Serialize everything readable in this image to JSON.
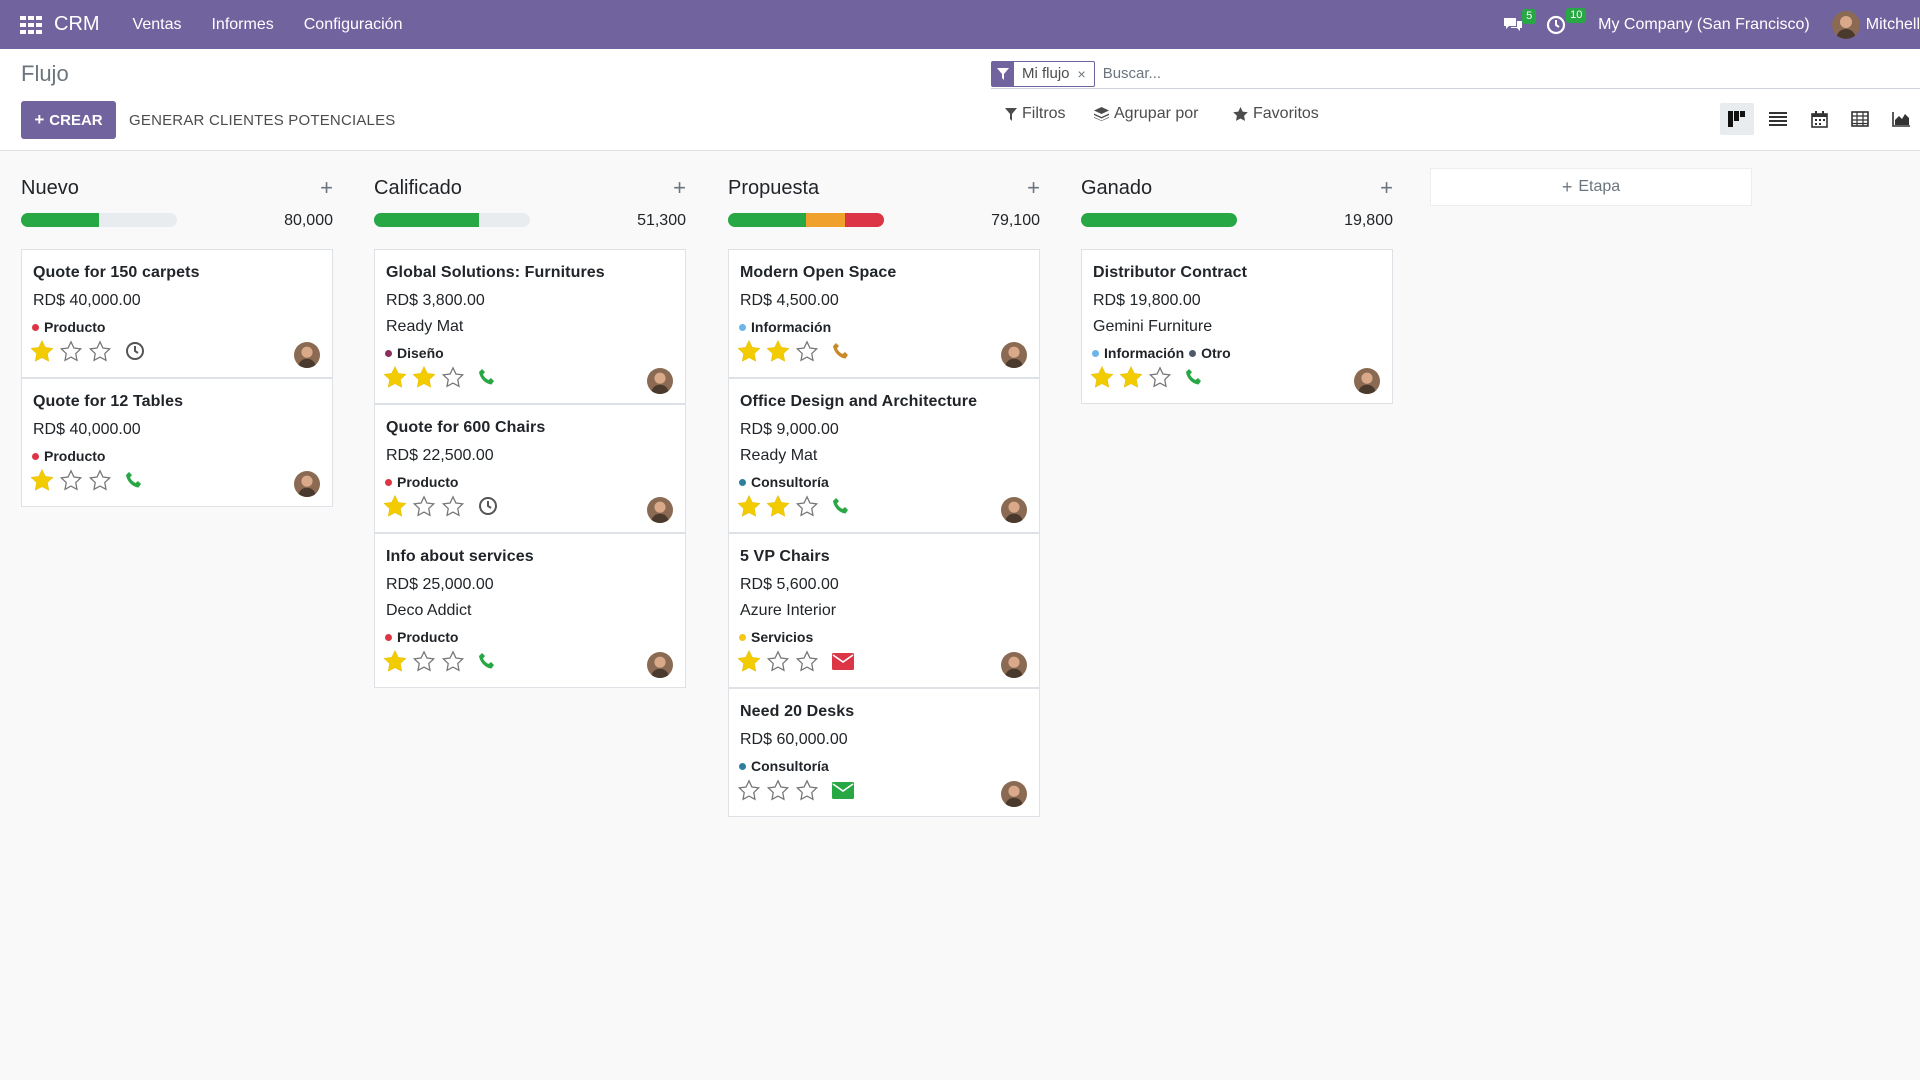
{
  "navbar": {
    "app_name": "CRM",
    "menu": [
      "Ventas",
      "Informes",
      "Configuración"
    ],
    "messages_count": "5",
    "activities_count": "10",
    "company": "My Company (San Francisco)",
    "user": "Mitchell",
    "bg_color": "#71639e"
  },
  "control": {
    "breadcrumb": "Flujo",
    "create_label": "CREAR",
    "generate_label": "GENERAR CLIENTES POTENCIALES",
    "facet_value": "Mi flujo",
    "facet_close": "×",
    "search_placeholder": "Buscar...",
    "filters_label": "Filtros",
    "groupby_label": "Agrupar por",
    "favorites_label": "Favoritos",
    "views": [
      "kanban-view",
      "list-view",
      "calendar-view",
      "pivot-view",
      "graph-view"
    ],
    "active_view": "kanban-view"
  },
  "columns": [
    {
      "title": "Nuevo",
      "add": "+",
      "total": "80,000",
      "progress": [
        {
          "color": "#28a745",
          "fraction": 0.5
        }
      ],
      "cards": [
        {
          "title": "Quote for 150 carpets",
          "amount": "RD$ 40,000.00",
          "customer": "",
          "tags": [
            {
              "name": "Producto",
              "color": "#dc3545"
            }
          ],
          "stars": 1,
          "activity": "clock"
        },
        {
          "title": "Quote for 12 Tables",
          "amount": "RD$ 40,000.00",
          "customer": "",
          "tags": [
            {
              "name": "Producto",
              "color": "#dc3545"
            }
          ],
          "stars": 1,
          "activity": "phone"
        }
      ]
    },
    {
      "title": "Calificado",
      "add": "+",
      "total": "51,300",
      "progress": [
        {
          "color": "#28a745",
          "fraction": 0.67
        }
      ],
      "cards": [
        {
          "title": "Global Solutions: Furnitures",
          "amount": "RD$ 3,800.00",
          "customer": "Ready Mat",
          "tags": [
            {
              "name": "Diseño",
              "color": "#8b2e5c"
            }
          ],
          "stars": 2,
          "activity": "phone"
        },
        {
          "title": "Quote for 600 Chairs",
          "amount": "RD$ 22,500.00",
          "customer": "",
          "tags": [
            {
              "name": "Producto",
              "color": "#dc3545"
            }
          ],
          "stars": 1,
          "activity": "clock"
        },
        {
          "title": "Info about services",
          "amount": "RD$ 25,000.00",
          "customer": "Deco Addict",
          "tags": [
            {
              "name": "Producto",
              "color": "#dc3545"
            }
          ],
          "stars": 1,
          "activity": "phone"
        }
      ]
    },
    {
      "title": "Propuesta",
      "add": "+",
      "total": "79,100",
      "progress": [
        {
          "color": "#28a745",
          "fraction": 0.5
        },
        {
          "color": "#f0a02c",
          "fraction": 0.25
        },
        {
          "color": "#dc3545",
          "fraction": 0.25
        }
      ],
      "cards": [
        {
          "title": "Modern Open Space",
          "amount": "RD$ 4,500.00",
          "customer": "",
          "tags": [
            {
              "name": "Información",
              "color": "#6cb5ea"
            }
          ],
          "stars": 2,
          "activity": "phone-orange"
        },
        {
          "title": "Office Design and Architecture",
          "amount": "RD$ 9,000.00",
          "customer": "Ready Mat",
          "tags": [
            {
              "name": "Consultoría",
              "color": "#2e7f9b"
            }
          ],
          "stars": 2,
          "activity": "phone"
        },
        {
          "title": "5 VP Chairs",
          "amount": "RD$ 5,600.00",
          "customer": "Azure Interior",
          "tags": [
            {
              "name": "Servicios",
              "color": "#f5c518"
            }
          ],
          "stars": 1,
          "activity": "mail-red"
        },
        {
          "title": "Need 20 Desks",
          "amount": "RD$ 60,000.00",
          "customer": "",
          "tags": [
            {
              "name": "Consultoría",
              "color": "#2e7f9b"
            }
          ],
          "stars": 0,
          "activity": "mail-green"
        }
      ]
    },
    {
      "title": "Ganado",
      "add": "+",
      "total": "19,800",
      "progress": [
        {
          "color": "#28a745",
          "fraction": 1.0
        }
      ],
      "cards": [
        {
          "title": "Distributor Contract",
          "amount": "RD$ 19,800.00",
          "customer": "Gemini Furniture",
          "tags": [
            {
              "name": "Información",
              "color": "#6cb5ea"
            },
            {
              "name": "Otro",
              "color": "#4c5a6b"
            }
          ],
          "stars": 2,
          "activity": "phone"
        }
      ]
    }
  ],
  "add_stage_label": "Etapa"
}
